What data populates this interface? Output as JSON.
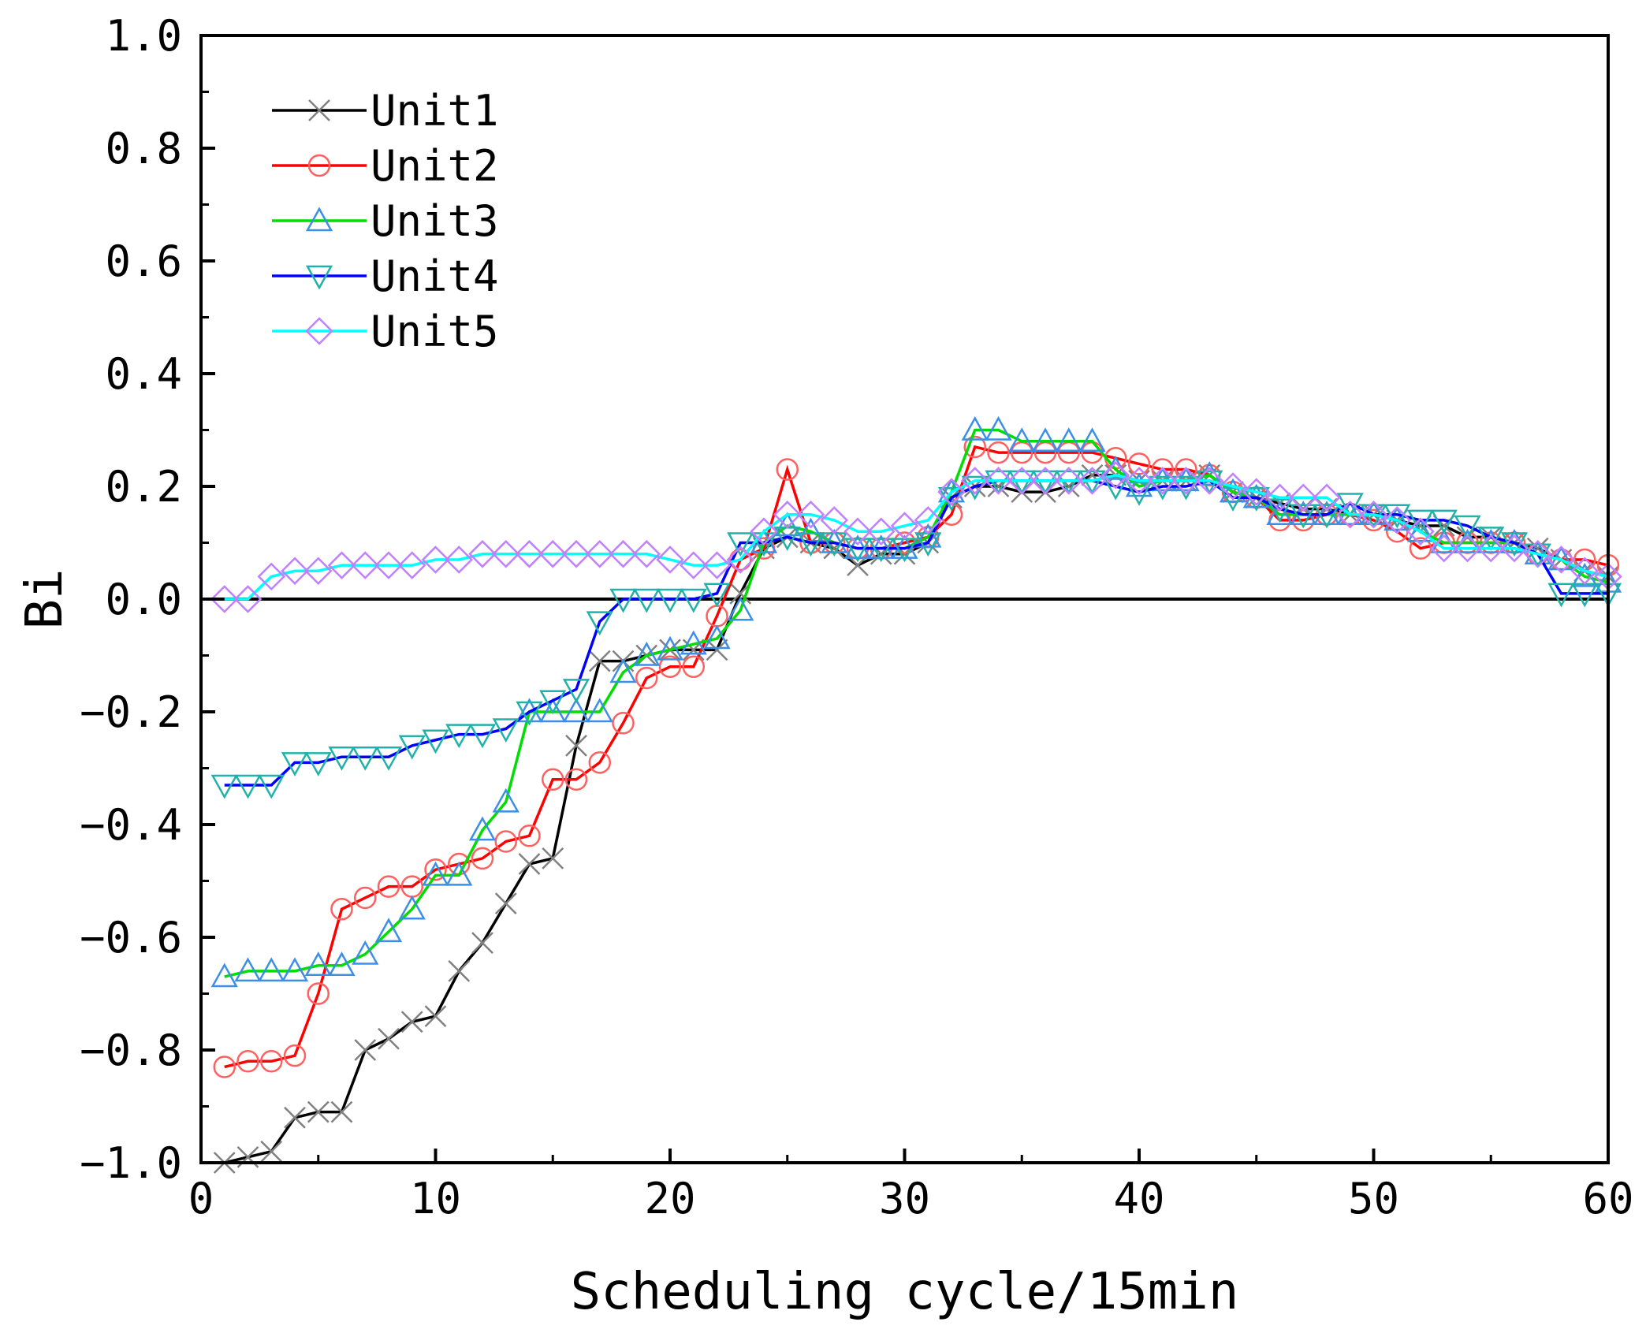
{
  "chart_data": {
    "type": "line",
    "title": "",
    "xlabel": "Scheduling cycle/15min",
    "ylabel": "Bi",
    "xlim": [
      0,
      60
    ],
    "ylim": [
      -1.0,
      1.0
    ],
    "x_ticks": [
      0,
      10,
      20,
      30,
      40,
      50,
      60
    ],
    "x_tick_labels": [
      "0",
      "10",
      "20",
      "30",
      "40",
      "50",
      "60"
    ],
    "y_ticks": [
      -1.0,
      -0.8,
      -0.6,
      -0.4,
      -0.2,
      0.0,
      0.2,
      0.4,
      0.6,
      0.8,
      1.0
    ],
    "y_tick_labels": [
      "−1.0",
      "−0.8",
      "−0.6",
      "−0.4",
      "−0.2",
      "0.0",
      "0.2",
      "0.4",
      "0.6",
      "0.8",
      "1.0"
    ],
    "grid": false,
    "zero_line": true,
    "legend_position": "top-left",
    "x": [
      1,
      2,
      3,
      4,
      5,
      6,
      7,
      8,
      9,
      10,
      11,
      12,
      13,
      14,
      15,
      16,
      17,
      18,
      19,
      20,
      21,
      22,
      23,
      24,
      25,
      26,
      27,
      28,
      29,
      30,
      31,
      32,
      33,
      34,
      35,
      36,
      37,
      38,
      39,
      40,
      41,
      42,
      43,
      44,
      45,
      46,
      47,
      48,
      49,
      50,
      51,
      52,
      53,
      54,
      55,
      56,
      57,
      58,
      59,
      60
    ],
    "series": [
      {
        "name": "Unit1",
        "line_color": "#000000",
        "marker": "x",
        "marker_color": "#808080",
        "values": [
          -1.0,
          -0.99,
          -0.98,
          -0.92,
          -0.91,
          -0.91,
          -0.8,
          -0.78,
          -0.75,
          -0.74,
          -0.66,
          -0.61,
          -0.54,
          -0.47,
          -0.46,
          -0.26,
          -0.11,
          -0.11,
          -0.1,
          -0.09,
          -0.09,
          -0.09,
          0.01,
          0.09,
          0.11,
          0.1,
          0.09,
          0.06,
          0.08,
          0.08,
          0.1,
          0.18,
          0.2,
          0.2,
          0.19,
          0.19,
          0.2,
          0.22,
          0.22,
          0.21,
          0.21,
          0.21,
          0.22,
          0.19,
          0.18,
          0.17,
          0.16,
          0.16,
          0.15,
          0.15,
          0.14,
          0.13,
          0.13,
          0.11,
          0.11,
          0.1,
          0.09,
          0.07,
          0.05,
          0.04
        ]
      },
      {
        "name": "Unit2",
        "line_color": "#ff0000",
        "marker": "circle",
        "marker_color": "#ff6060",
        "values": [
          -0.83,
          -0.82,
          -0.82,
          -0.81,
          -0.7,
          -0.55,
          -0.53,
          -0.51,
          -0.51,
          -0.48,
          -0.47,
          -0.46,
          -0.43,
          -0.42,
          -0.32,
          -0.32,
          -0.29,
          -0.22,
          -0.14,
          -0.12,
          -0.12,
          -0.03,
          0.07,
          0.09,
          0.23,
          0.1,
          0.1,
          0.09,
          0.09,
          0.1,
          0.11,
          0.15,
          0.27,
          0.26,
          0.26,
          0.26,
          0.26,
          0.26,
          0.25,
          0.24,
          0.23,
          0.23,
          0.22,
          0.19,
          0.18,
          0.14,
          0.14,
          0.15,
          0.15,
          0.14,
          0.12,
          0.09,
          0.1,
          0.1,
          0.1,
          0.1,
          0.08,
          0.07,
          0.07,
          0.06
        ]
      },
      {
        "name": "Unit3",
        "line_color": "#00dd00",
        "marker": "triangle-up",
        "marker_color": "#3c8fe6",
        "values": [
          -0.67,
          -0.66,
          -0.66,
          -0.66,
          -0.65,
          -0.65,
          -0.63,
          -0.59,
          -0.55,
          -0.49,
          -0.49,
          -0.41,
          -0.36,
          -0.2,
          -0.2,
          -0.2,
          -0.2,
          -0.13,
          -0.1,
          -0.09,
          -0.08,
          -0.07,
          -0.02,
          0.1,
          0.13,
          0.12,
          0.1,
          0.09,
          0.09,
          0.09,
          0.11,
          0.19,
          0.3,
          0.3,
          0.28,
          0.28,
          0.28,
          0.28,
          0.23,
          0.2,
          0.21,
          0.21,
          0.22,
          0.19,
          0.18,
          0.15,
          0.15,
          0.15,
          0.15,
          0.15,
          0.14,
          0.12,
          0.1,
          0.1,
          0.1,
          0.1,
          0.08,
          0.07,
          0.04,
          0.03
        ]
      },
      {
        "name": "Unit4",
        "line_color": "#0000ff",
        "marker": "triangle-down",
        "marker_color": "#20b2aa",
        "values": [
          -0.33,
          -0.33,
          -0.33,
          -0.29,
          -0.29,
          -0.28,
          -0.28,
          -0.28,
          -0.26,
          -0.25,
          -0.24,
          -0.24,
          -0.23,
          -0.2,
          -0.18,
          -0.16,
          -0.04,
          0.0,
          0.0,
          0.0,
          0.0,
          0.01,
          0.1,
          0.1,
          0.11,
          0.1,
          0.1,
          0.09,
          0.09,
          0.09,
          0.1,
          0.18,
          0.2,
          0.21,
          0.21,
          0.21,
          0.21,
          0.21,
          0.2,
          0.19,
          0.2,
          0.2,
          0.21,
          0.18,
          0.18,
          0.16,
          0.15,
          0.15,
          0.17,
          0.15,
          0.15,
          0.14,
          0.14,
          0.13,
          0.11,
          0.1,
          0.08,
          0.01,
          0.01,
          0.01
        ]
      },
      {
        "name": "Unit5",
        "line_color": "#00ffff",
        "marker": "diamond",
        "marker_color": "#c080ff",
        "values": [
          0.0,
          0.0,
          0.04,
          0.05,
          0.05,
          0.06,
          0.06,
          0.06,
          0.06,
          0.07,
          0.07,
          0.08,
          0.08,
          0.08,
          0.08,
          0.08,
          0.08,
          0.08,
          0.08,
          0.07,
          0.06,
          0.06,
          0.07,
          0.12,
          0.15,
          0.15,
          0.14,
          0.12,
          0.12,
          0.13,
          0.14,
          0.19,
          0.21,
          0.21,
          0.21,
          0.21,
          0.21,
          0.21,
          0.22,
          0.21,
          0.21,
          0.21,
          0.21,
          0.2,
          0.19,
          0.18,
          0.18,
          0.18,
          0.15,
          0.15,
          0.14,
          0.12,
          0.09,
          0.09,
          0.09,
          0.09,
          0.08,
          0.07,
          0.05,
          0.04
        ]
      }
    ]
  }
}
